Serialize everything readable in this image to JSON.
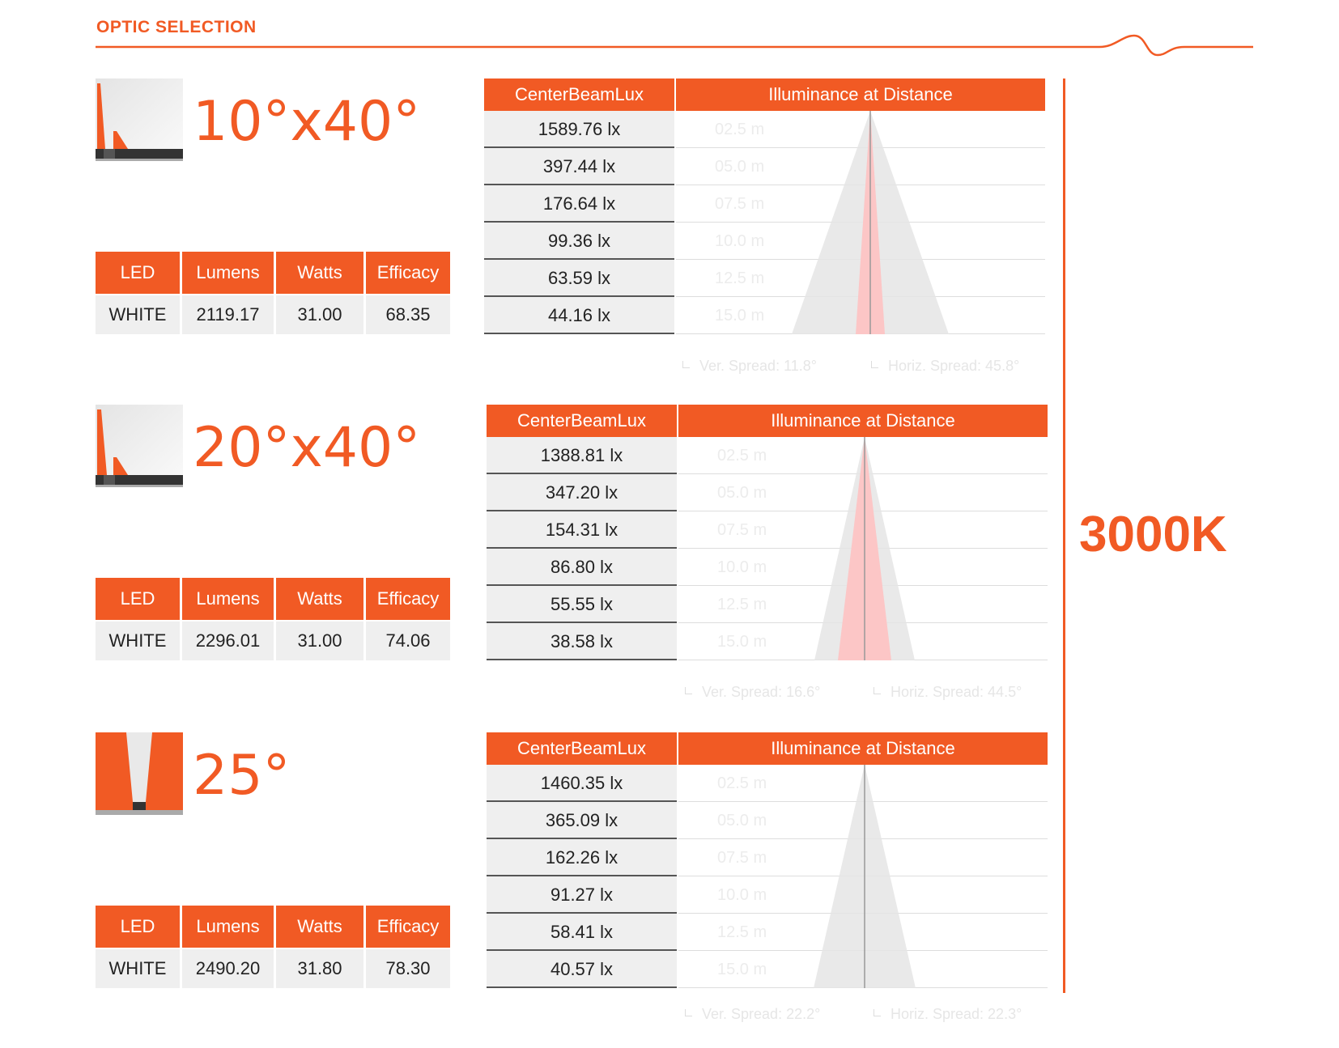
{
  "header": {
    "title": "OPTIC SELECTION"
  },
  "led_table_headers": [
    "LED",
    "Lumens",
    "Watts",
    "Efficacy"
  ],
  "lux_headers": {
    "center": "CenterBeamLux",
    "distance": "Illuminance at Distance"
  },
  "distances": [
    "02.5 m",
    "05.0 m",
    "07.5 m",
    "10.0 m",
    "12.5 m",
    "15.0 m"
  ],
  "color_temperature": "3000K",
  "accent_color": "#f15a24",
  "optics": [
    {
      "name": "10°x40°",
      "led": {
        "led": "WHITE",
        "lumens": "2119.17",
        "watts": "31.00",
        "efficacy": "68.35"
      },
      "lux": [
        "1589.76 lx",
        "397.44 lx",
        "176.64 lx",
        "99.36 lx",
        "63.59 lx",
        "44.16 lx"
      ],
      "ver_spread": "Ver. Spread: 11.8°",
      "horiz_spread": "Horiz. Spread: 45.8°"
    },
    {
      "name": "20°x40°",
      "led": {
        "led": "WHITE",
        "lumens": "2296.01",
        "watts": "31.00",
        "efficacy": "74.06"
      },
      "lux": [
        "1388.81 lx",
        "347.20 lx",
        "154.31 lx",
        "86.80 lx",
        "55.55 lx",
        "38.58 lx"
      ],
      "ver_spread": "Ver. Spread: 16.6°",
      "horiz_spread": "Horiz. Spread: 44.5°"
    },
    {
      "name": "25°",
      "led": {
        "led": "WHITE",
        "lumens": "2490.20",
        "watts": "31.80",
        "efficacy": "78.30"
      },
      "lux": [
        "1460.35 lx",
        "365.09 lx",
        "162.26 lx",
        "91.27 lx",
        "58.41 lx",
        "40.57 lx"
      ],
      "ver_spread": "Ver. Spread: 22.2°",
      "horiz_spread": "Horiz. Spread: 22.3°"
    }
  ]
}
